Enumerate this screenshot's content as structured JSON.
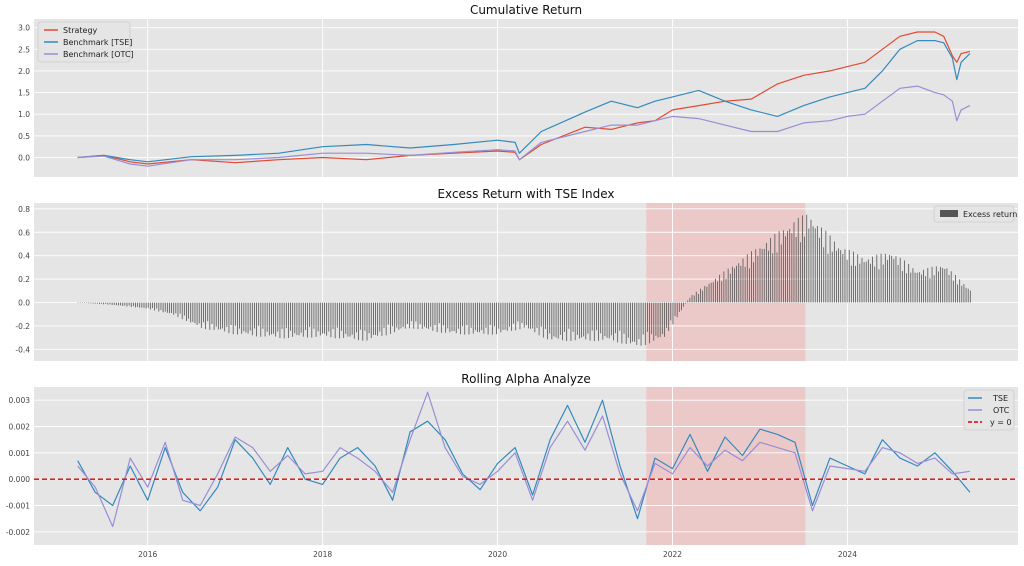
{
  "colors": {
    "strategy": "#e24a33",
    "tse": "#348abd",
    "otc": "#988ed5",
    "excess": "#555555",
    "zero_line": "#e00000",
    "highlight": "#f4a6a6",
    "panel_bg": "#e5e5e5",
    "grid": "#ffffff"
  },
  "chart_data": [
    {
      "type": "line",
      "title": "Cumulative Return",
      "xlim": [
        2014.7,
        2025.95
      ],
      "ylim": [
        -0.45,
        3.2
      ],
      "yticks": [
        0.0,
        0.5,
        1.0,
        1.5,
        2.0,
        2.5,
        3.0
      ],
      "ytick_labels": [
        "0.0",
        "0.5",
        "1.0",
        "1.5",
        "2.0",
        "2.5",
        "3.0"
      ],
      "legend_position": "top-left",
      "series": [
        {
          "name": "Strategy",
          "color_key": "strategy",
          "x": [
            2015.2,
            2015.5,
            2015.8,
            2016.0,
            2016.5,
            2017.0,
            2017.5,
            2018.0,
            2018.5,
            2019.0,
            2019.5,
            2020.0,
            2020.2,
            2020.25,
            2020.5,
            2021.0,
            2021.3,
            2021.6,
            2021.8,
            2022.0,
            2022.3,
            2022.6,
            2022.9,
            2023.2,
            2023.5,
            2023.8,
            2024.0,
            2024.2,
            2024.4,
            2024.6,
            2024.8,
            2025.0,
            2025.1,
            2025.2,
            2025.25,
            2025.3,
            2025.4
          ],
          "y": [
            0.0,
            0.05,
            -0.1,
            -0.15,
            -0.05,
            -0.12,
            -0.05,
            0.0,
            -0.05,
            0.05,
            0.1,
            0.15,
            0.12,
            -0.05,
            0.3,
            0.7,
            0.65,
            0.8,
            0.85,
            1.1,
            1.2,
            1.3,
            1.35,
            1.7,
            1.9,
            2.0,
            2.1,
            2.2,
            2.5,
            2.8,
            2.9,
            2.9,
            2.8,
            2.35,
            2.2,
            2.4,
            2.45
          ]
        },
        {
          "name": "Benchmark [TSE]",
          "color_key": "tse",
          "x": [
            2015.2,
            2015.5,
            2015.8,
            2016.0,
            2016.5,
            2017.0,
            2017.5,
            2018.0,
            2018.5,
            2019.0,
            2019.5,
            2020.0,
            2020.2,
            2020.25,
            2020.5,
            2021.0,
            2021.3,
            2021.6,
            2021.8,
            2022.0,
            2022.3,
            2022.6,
            2022.9,
            2023.2,
            2023.5,
            2023.8,
            2024.0,
            2024.2,
            2024.4,
            2024.6,
            2024.8,
            2025.0,
            2025.1,
            2025.2,
            2025.25,
            2025.3,
            2025.4
          ],
          "y": [
            0.0,
            0.05,
            -0.05,
            -0.1,
            0.02,
            0.05,
            0.1,
            0.25,
            0.3,
            0.22,
            0.3,
            0.4,
            0.35,
            0.1,
            0.6,
            1.05,
            1.3,
            1.15,
            1.3,
            1.4,
            1.55,
            1.3,
            1.1,
            0.95,
            1.2,
            1.4,
            1.5,
            1.6,
            2.0,
            2.5,
            2.7,
            2.7,
            2.65,
            2.3,
            1.8,
            2.2,
            2.4
          ]
        },
        {
          "name": "Benchmark [OTC]",
          "color_key": "otc",
          "x": [
            2015.2,
            2015.5,
            2015.8,
            2016.0,
            2016.5,
            2017.0,
            2017.5,
            2018.0,
            2018.5,
            2019.0,
            2019.5,
            2020.0,
            2020.2,
            2020.25,
            2020.5,
            2021.0,
            2021.3,
            2021.6,
            2021.8,
            2022.0,
            2022.3,
            2022.6,
            2022.9,
            2023.2,
            2023.5,
            2023.8,
            2024.0,
            2024.2,
            2024.4,
            2024.6,
            2024.8,
            2025.0,
            2025.1,
            2025.2,
            2025.25,
            2025.3,
            2025.4
          ],
          "y": [
            0.0,
            0.03,
            -0.15,
            -0.2,
            -0.05,
            -0.05,
            0.0,
            0.1,
            0.1,
            0.05,
            0.12,
            0.18,
            0.15,
            -0.05,
            0.35,
            0.6,
            0.75,
            0.75,
            0.85,
            0.95,
            0.9,
            0.75,
            0.6,
            0.6,
            0.8,
            0.85,
            0.95,
            1.0,
            1.3,
            1.6,
            1.65,
            1.5,
            1.45,
            1.3,
            0.85,
            1.1,
            1.2
          ]
        }
      ]
    },
    {
      "type": "bar",
      "title": "Excess Return with TSE Index",
      "xlim": [
        2014.7,
        2025.95
      ],
      "ylim": [
        -0.5,
        0.85
      ],
      "yticks": [
        -0.4,
        -0.2,
        0.0,
        0.2,
        0.4,
        0.6,
        0.8
      ],
      "ytick_labels": [
        "-0.4",
        "-0.2",
        "0.0",
        "0.2",
        "0.4",
        "0.6",
        "0.8"
      ],
      "highlight": [
        2021.7,
        2023.52
      ],
      "legend_position": "top-right",
      "series": [
        {
          "name": "Excess return",
          "color_key": "excess",
          "x": [
            2015.2,
            2015.6,
            2016.0,
            2016.3,
            2016.6,
            2017.0,
            2017.5,
            2018.0,
            2018.5,
            2019.0,
            2019.5,
            2020.0,
            2020.3,
            2020.6,
            2021.0,
            2021.3,
            2021.6,
            2021.9,
            2022.2,
            2022.5,
            2022.8,
            2023.1,
            2023.4,
            2023.55,
            2023.9,
            2024.2,
            2024.5,
            2024.8,
            2025.1,
            2025.4
          ],
          "y": [
            0.0,
            -0.02,
            -0.05,
            -0.1,
            -0.2,
            -0.25,
            -0.28,
            -0.27,
            -0.3,
            -0.2,
            -0.25,
            -0.25,
            -0.2,
            -0.3,
            -0.3,
            -0.3,
            -0.35,
            -0.28,
            0.05,
            0.2,
            0.35,
            0.5,
            0.65,
            0.7,
            0.45,
            0.35,
            0.4,
            0.25,
            0.3,
            0.1
          ]
        }
      ]
    },
    {
      "type": "line",
      "title": "Rolling Alpha Analyze",
      "xlim": [
        2014.7,
        2025.95
      ],
      "ylim": [
        -0.0025,
        0.0035
      ],
      "yticks": [
        -0.002,
        -0.001,
        0.0,
        0.001,
        0.002,
        0.003
      ],
      "ytick_labels": [
        "-0.002",
        "-0.001",
        "0.000",
        "0.001",
        "0.002",
        "0.003"
      ],
      "xticks": [
        2016,
        2018,
        2020,
        2022,
        2024
      ],
      "xtick_labels": [
        "2016",
        "2018",
        "2020",
        "2022",
        "2024"
      ],
      "highlight": [
        2021.7,
        2023.52
      ],
      "legend_position": "top-right",
      "series": [
        {
          "name": "TSE",
          "color_key": "tse",
          "x": [
            2015.2,
            2015.4,
            2015.6,
            2015.8,
            2016.0,
            2016.2,
            2016.4,
            2016.6,
            2016.8,
            2017.0,
            2017.2,
            2017.4,
            2017.6,
            2017.8,
            2018.0,
            2018.2,
            2018.4,
            2018.6,
            2018.8,
            2019.0,
            2019.2,
            2019.4,
            2019.6,
            2019.8,
            2020.0,
            2020.2,
            2020.4,
            2020.6,
            2020.8,
            2021.0,
            2021.2,
            2021.4,
            2021.6,
            2021.8,
            2022.0,
            2022.2,
            2022.4,
            2022.6,
            2022.8,
            2023.0,
            2023.2,
            2023.4,
            2023.6,
            2023.8,
            2024.0,
            2024.2,
            2024.4,
            2024.6,
            2024.8,
            2025.0,
            2025.2,
            2025.4
          ],
          "y": [
            0.0007,
            -0.0005,
            -0.001,
            0.0005,
            -0.0008,
            0.0012,
            -0.0005,
            -0.0012,
            -0.0003,
            0.0015,
            0.0008,
            -0.0002,
            0.0012,
            0.0,
            -0.0002,
            0.0008,
            0.0012,
            0.0005,
            -0.0008,
            0.0018,
            0.0022,
            0.0015,
            0.0002,
            -0.0004,
            0.0006,
            0.0012,
            -0.0006,
            0.0015,
            0.0028,
            0.0014,
            0.003,
            0.0005,
            -0.0015,
            0.0008,
            0.0004,
            0.0017,
            0.0003,
            0.0016,
            0.0009,
            0.0019,
            0.0017,
            0.0014,
            -0.001,
            0.0008,
            0.0005,
            0.0002,
            0.0015,
            0.0008,
            0.0005,
            0.001,
            0.0003,
            -0.0005
          ]
        },
        {
          "name": "OTC",
          "color_key": "otc",
          "x": [
            2015.2,
            2015.4,
            2015.6,
            2015.8,
            2016.0,
            2016.2,
            2016.4,
            2016.6,
            2016.8,
            2017.0,
            2017.2,
            2017.4,
            2017.6,
            2017.8,
            2018.0,
            2018.2,
            2018.4,
            2018.6,
            2018.8,
            2019.0,
            2019.2,
            2019.4,
            2019.6,
            2019.8,
            2020.0,
            2020.2,
            2020.4,
            2020.6,
            2020.8,
            2021.0,
            2021.2,
            2021.4,
            2021.6,
            2021.8,
            2022.0,
            2022.2,
            2022.4,
            2022.6,
            2022.8,
            2023.0,
            2023.2,
            2023.4,
            2023.6,
            2023.8,
            2024.0,
            2024.2,
            2024.4,
            2024.6,
            2024.8,
            2025.0,
            2025.2,
            2025.4
          ],
          "y": [
            0.0005,
            -0.0003,
            -0.0018,
            0.0008,
            -0.0003,
            0.0014,
            -0.0008,
            -0.001,
            0.0002,
            0.0016,
            0.0012,
            0.0003,
            0.0009,
            0.0002,
            0.0003,
            0.0012,
            0.0008,
            0.0003,
            -0.0005,
            0.0015,
            0.0033,
            0.0012,
            0.0001,
            -0.0002,
            0.0003,
            0.001,
            -0.0008,
            0.0012,
            0.0022,
            0.0011,
            0.0024,
            0.0002,
            -0.0012,
            0.0006,
            0.0002,
            0.0012,
            0.0005,
            0.0011,
            0.0007,
            0.0014,
            0.0012,
            0.001,
            -0.0012,
            0.0005,
            0.0004,
            0.0003,
            0.0012,
            0.001,
            0.0006,
            0.0008,
            0.0002,
            0.0003
          ]
        },
        {
          "name": "y = 0",
          "color_key": "zero_line",
          "x": [
            2014.7,
            2025.95
          ],
          "y": [
            0,
            0
          ],
          "dashed": true
        }
      ]
    }
  ]
}
